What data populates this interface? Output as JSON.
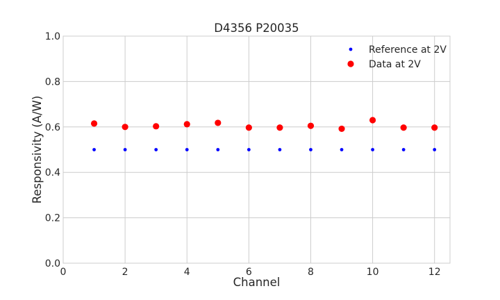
{
  "chart_data": {
    "type": "scatter",
    "title": "D4356 P20035",
    "xlabel": "Channel",
    "ylabel": "Responsivity (A/W)",
    "xlim": [
      0,
      12.5
    ],
    "ylim": [
      0.0,
      1.0
    ],
    "xticks": [
      "0",
      "2",
      "4",
      "6",
      "8",
      "10",
      "12"
    ],
    "yticks": [
      "0.0",
      "0.2",
      "0.4",
      "0.6",
      "0.8",
      "1.0"
    ],
    "grid": true,
    "legend_position": "top-right",
    "x": [
      1,
      2,
      3,
      4,
      5,
      6,
      7,
      8,
      9,
      10,
      11,
      12
    ],
    "series": [
      {
        "name": "Reference at 2V",
        "color": "#0000ff",
        "marker": "small-dot",
        "values": [
          0.5,
          0.5,
          0.5,
          0.5,
          0.5,
          0.5,
          0.5,
          0.5,
          0.5,
          0.5,
          0.5,
          0.5
        ]
      },
      {
        "name": "Data at 2V",
        "color": "#ff0000",
        "marker": "large-dot",
        "values": [
          0.615,
          0.6,
          0.603,
          0.612,
          0.618,
          0.597,
          0.597,
          0.605,
          0.592,
          0.63,
          0.597,
          0.597
        ]
      }
    ]
  }
}
